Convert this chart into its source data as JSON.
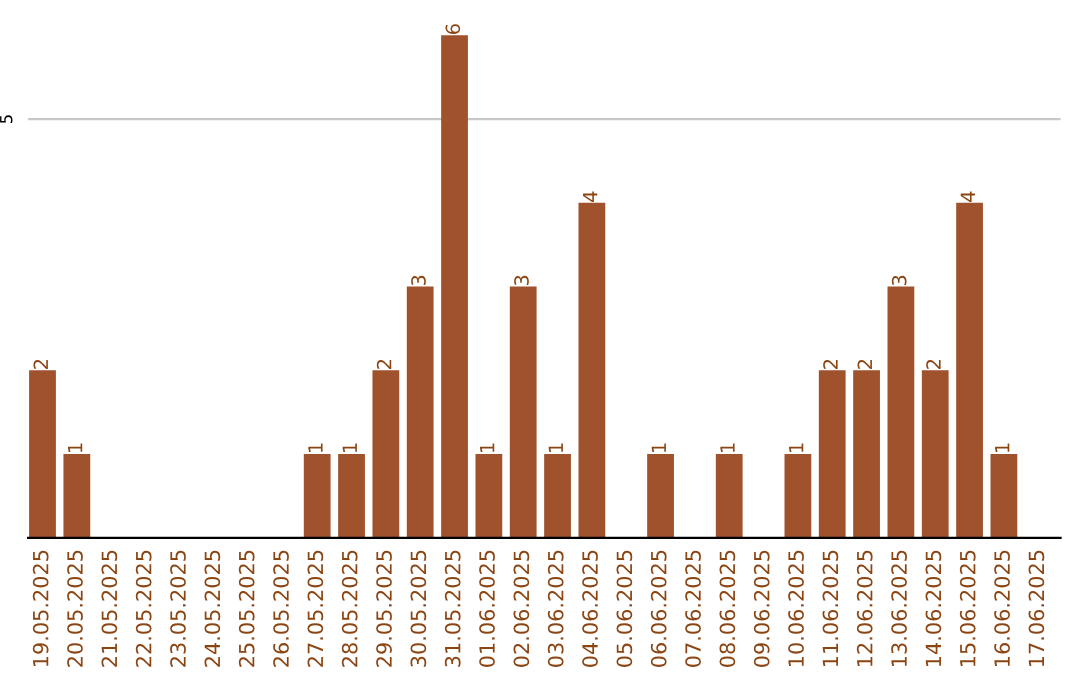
{
  "chart_data": {
    "type": "bar",
    "categories": [
      "19.05.2025",
      "20.05.2025",
      "21.05.2025",
      "22.05.2025",
      "23.05.2025",
      "24.05.2025",
      "25.05.2025",
      "26.05.2025",
      "27.05.2025",
      "28.05.2025",
      "29.05.2025",
      "30.05.2025",
      "31.05.2025",
      "01.06.2025",
      "02.06.2025",
      "03.06.2025",
      "04.06.2025",
      "05.06.2025",
      "06.06.2025",
      "07.06.2025",
      "08.06.2025",
      "09.06.2025",
      "10.06.2025",
      "11.06.2025",
      "12.06.2025",
      "13.06.2025",
      "14.06.2025",
      "15.06.2025",
      "16.06.2025",
      "17.06.2025"
    ],
    "values": [
      2,
      1,
      0,
      0,
      0,
      0,
      0,
      0,
      1,
      1,
      2,
      3,
      6,
      1,
      3,
      1,
      4,
      0,
      1,
      0,
      1,
      0,
      1,
      2,
      2,
      3,
      2,
      4,
      1,
      0
    ],
    "value_labels": [
      "2",
      "1",
      null,
      null,
      null,
      null,
      null,
      null,
      "1",
      "1",
      "2",
      "3",
      "6",
      "1",
      "3",
      "1",
      "4",
      null,
      "1",
      null,
      "1",
      null,
      "1",
      "2",
      "2",
      "3",
      "2",
      "4",
      "1",
      null
    ],
    "color": "#a0522d",
    "ref_lines": [
      {
        "axis": "y",
        "value": 5,
        "label": "5",
        "color": "#c8c8c8"
      }
    ]
  }
}
